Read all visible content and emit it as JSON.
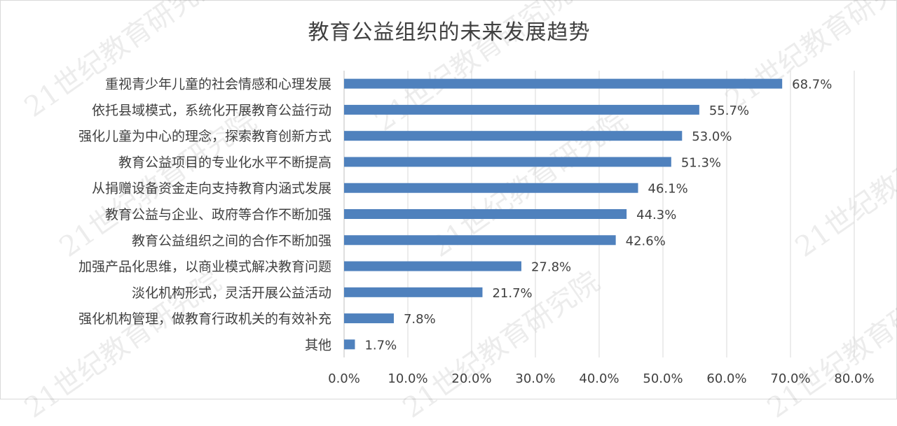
{
  "watermark": "21世纪教育研究院",
  "chart_data": {
    "type": "bar",
    "orientation": "horizontal",
    "title": "教育公益组织的未来发展趋势",
    "categories": [
      "重视青少年儿童的社会情感和心理发展",
      "依托县域模式，系统化开展教育公益行动",
      "强化儿童为中心的理念，探索教育创新方式",
      "教育公益项目的专业化水平不断提高",
      "从捐赠设备资金走向支持教育内涵式发展",
      "教育公益与企业、政府等合作不断加强",
      "教育公益组织之间的合作不断加强",
      "加强产品化思维，以商业模式解决教育问题",
      "淡化机构形式，灵活开展公益活动",
      "强化机构管理，做教育行政机关的有效补充",
      "其他"
    ],
    "values": [
      68.7,
      55.7,
      53.0,
      51.3,
      46.1,
      44.3,
      42.6,
      27.8,
      21.7,
      7.8,
      1.7
    ],
    "data_labels": [
      "68.7%",
      "55.7%",
      "53.0%",
      "51.3%",
      "46.1%",
      "44.3%",
      "42.6%",
      "27.8%",
      "21.7%",
      "7.8%",
      "1.7%"
    ],
    "x_ticks": [
      "0.0%",
      "10.0%",
      "20.0%",
      "30.0%",
      "40.0%",
      "50.0%",
      "60.0%",
      "70.0%",
      "80.0%"
    ],
    "xlim": [
      0,
      80
    ],
    "grid": true,
    "bar_color": "#4f81bd",
    "grid_color": "#d9d9d9",
    "text_color": "#404040"
  }
}
